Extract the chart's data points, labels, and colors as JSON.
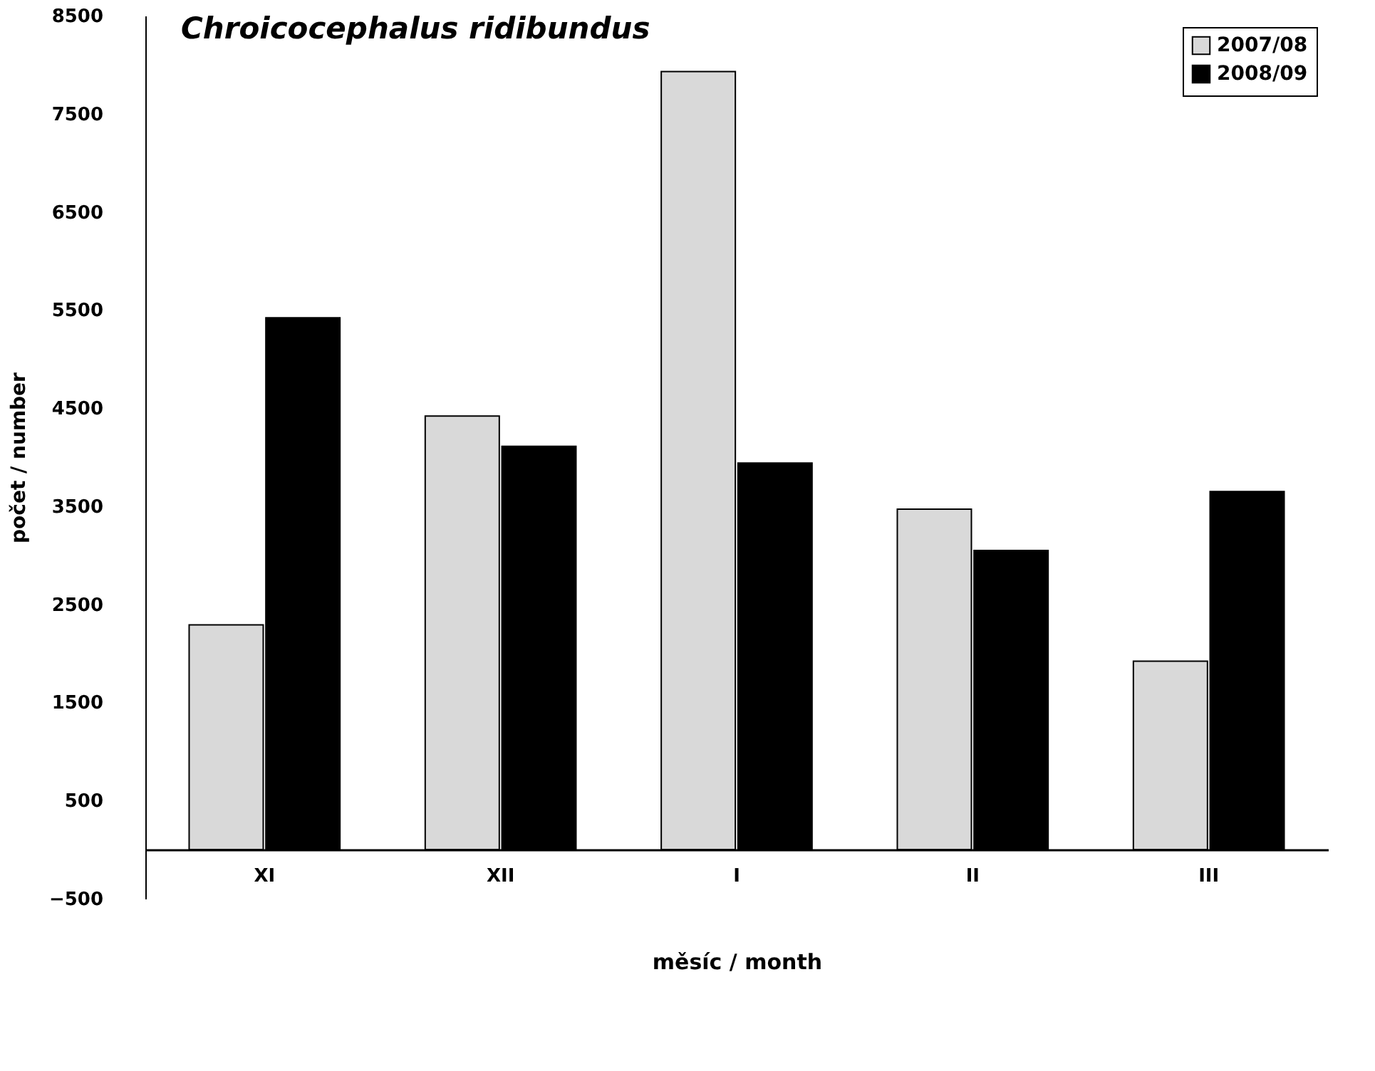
{
  "chart_data": {
    "type": "bar",
    "title": "Chroicocephalus ridibundus",
    "xlabel": "měsíc / month",
    "ylabel": "počet / number",
    "categories": [
      "XI",
      "XII",
      "I",
      "II",
      "III"
    ],
    "series": [
      {
        "name": "2007/08",
        "color": "#d9d9d9",
        "values": [
          2290,
          4420,
          7930,
          3470,
          1920
        ]
      },
      {
        "name": "2008/09",
        "color": "#000000",
        "values": [
          5420,
          4110,
          3940,
          3050,
          3650
        ]
      }
    ],
    "ylim": [
      -500,
      8500
    ],
    "yticks": [
      -500,
      500,
      1500,
      2500,
      3500,
      4500,
      5500,
      6500,
      7500,
      8500
    ],
    "grid": false,
    "legend": "top right"
  }
}
